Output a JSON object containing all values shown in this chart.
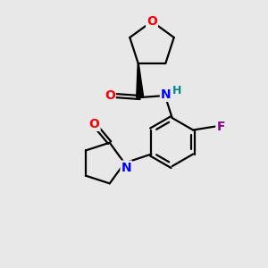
{
  "bg_color": "#e8e8e8",
  "atom_colors": {
    "O": "#ff0000",
    "N": "#0000ff",
    "F": "#8b008b",
    "H": "#008b8b",
    "C": "#000000"
  },
  "bond_color": "#000000"
}
